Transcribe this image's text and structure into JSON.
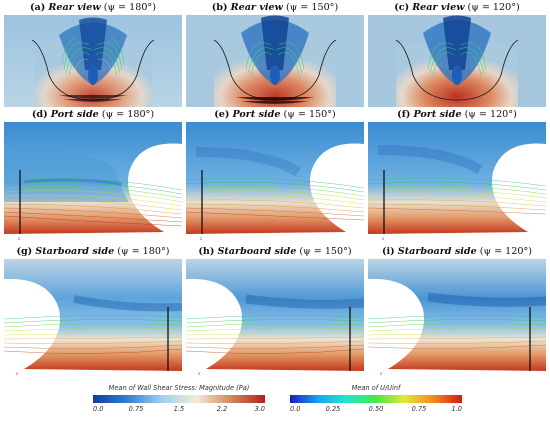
{
  "panels": [
    {
      "label": "(a)",
      "name": "Rear view",
      "angle": "(ψ = 180°)"
    },
    {
      "label": "(b)",
      "name": "Rear view",
      "angle": "(ψ = 150°)"
    },
    {
      "label": "(c)",
      "name": "Rear view",
      "angle": "(ψ = 120°)"
    },
    {
      "label": "(d)",
      "name": "Port side",
      "angle": "(ψ = 180°)"
    },
    {
      "label": "(e)",
      "name": "Port side",
      "angle": "(ψ = 150°)"
    },
    {
      "label": "(f)",
      "name": "Port side",
      "angle": "(ψ = 120°)"
    },
    {
      "label": "(g)",
      "name": "Starboard side",
      "angle": "(ψ = 180°)"
    },
    {
      "label": "(h)",
      "name": "Starboard side",
      "angle": "(ψ = 150°)"
    },
    {
      "label": "(i)",
      "name": "Starboard side",
      "angle": "(ψ = 120°)"
    }
  ],
  "colorbars": {
    "wall_shear": {
      "title": "Mean of Wall Shear Stress: Magnitude (Pa)",
      "ticks": [
        "0.0",
        "0.75",
        "1.5",
        "2.2",
        "3.0"
      ],
      "colors": [
        "#123c9c",
        "#2e7fd6",
        "#9fd0f2",
        "#f3ead8",
        "#d28a5a",
        "#b2201d"
      ]
    },
    "velocity": {
      "title": "Mean of U/Uinf",
      "ticks": [
        "0.0",
        "0.25",
        "0.50",
        "0.75",
        "1.0"
      ],
      "colors": [
        "#1b1bc8",
        "#1aa6f0",
        "#22e6c8",
        "#44e844",
        "#e6e63a",
        "#f08a1e",
        "#d01818"
      ]
    }
  },
  "axis_glyph": {
    "v": "z",
    "h": "y"
  },
  "colors": {
    "hull_blue": "#3d8fd3",
    "hull_light": "#c9dde9",
    "hot": "#c53a26",
    "streamline": "#2ec05a"
  }
}
